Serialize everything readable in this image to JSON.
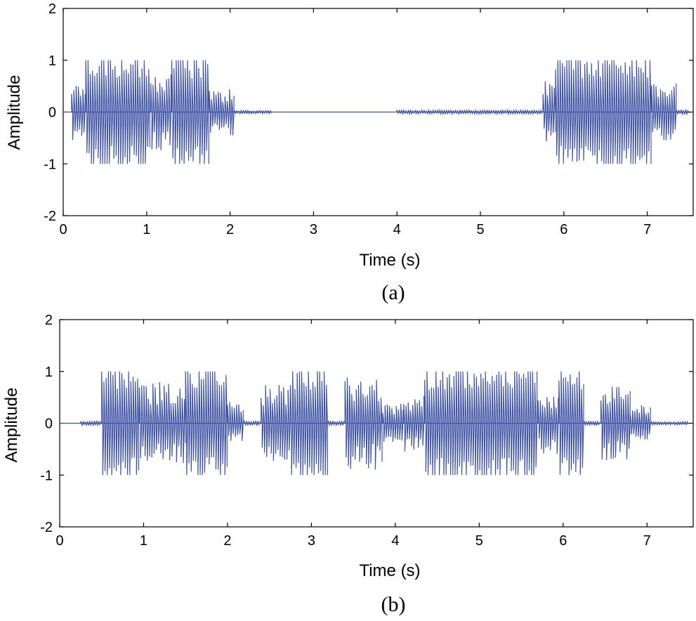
{
  "chart_data": [
    {
      "type": "line",
      "caption": "(a)",
      "xlabel": "Time (s)",
      "ylabel": "Amplitude",
      "xlim": [
        0,
        7.55
      ],
      "ylim": [
        -2,
        2
      ],
      "xticks": [
        0,
        1,
        2,
        3,
        4,
        5,
        6,
        7
      ],
      "yticks": [
        -2,
        -1,
        0,
        1,
        2
      ],
      "grid": false,
      "color": "#3f53a5",
      "segments": [
        {
          "start": 0.1,
          "end": 0.27,
          "amp": 0.6
        },
        {
          "start": 0.27,
          "end": 1.05,
          "amp": 1.0
        },
        {
          "start": 1.05,
          "end": 1.3,
          "amp": 0.75
        },
        {
          "start": 1.3,
          "end": 1.75,
          "amp": 1.0
        },
        {
          "start": 1.75,
          "end": 2.05,
          "amp": 0.45
        },
        {
          "start": 2.05,
          "end": 2.5,
          "amp": 0.03
        },
        {
          "start": 4.0,
          "end": 5.75,
          "amp": 0.04
        },
        {
          "start": 5.75,
          "end": 5.9,
          "amp": 0.6
        },
        {
          "start": 5.9,
          "end": 7.05,
          "amp": 1.0
        },
        {
          "start": 7.05,
          "end": 7.35,
          "amp": 0.6
        },
        {
          "start": 7.35,
          "end": 7.5,
          "amp": 0.05
        }
      ]
    },
    {
      "type": "line",
      "caption": "(b)",
      "xlabel": "Time (s)",
      "ylabel": "Amplitude",
      "xlim": [
        0,
        7.55
      ],
      "ylim": [
        -2,
        2
      ],
      "xticks": [
        0,
        1,
        2,
        3,
        4,
        5,
        6,
        7
      ],
      "yticks": [
        -2,
        -1,
        0,
        1,
        2
      ],
      "grid": false,
      "color": "#3f53a5",
      "segments": [
        {
          "start": 0.25,
          "end": 0.5,
          "amp": 0.05
        },
        {
          "start": 0.5,
          "end": 0.95,
          "amp": 1.0
        },
        {
          "start": 0.95,
          "end": 1.5,
          "amp": 0.8
        },
        {
          "start": 1.5,
          "end": 2.0,
          "amp": 1.0
        },
        {
          "start": 2.0,
          "end": 2.2,
          "amp": 0.45
        },
        {
          "start": 2.2,
          "end": 2.4,
          "amp": 0.05
        },
        {
          "start": 2.4,
          "end": 2.75,
          "amp": 0.75
        },
        {
          "start": 2.75,
          "end": 3.2,
          "amp": 1.0
        },
        {
          "start": 3.2,
          "end": 3.4,
          "amp": 0.05
        },
        {
          "start": 3.4,
          "end": 3.85,
          "amp": 0.9
        },
        {
          "start": 3.85,
          "end": 4.1,
          "amp": 0.4
        },
        {
          "start": 4.1,
          "end": 4.35,
          "amp": 0.55
        },
        {
          "start": 4.35,
          "end": 5.7,
          "amp": 1.0
        },
        {
          "start": 5.7,
          "end": 5.95,
          "amp": 0.6
        },
        {
          "start": 5.95,
          "end": 6.25,
          "amp": 1.0
        },
        {
          "start": 6.25,
          "end": 6.45,
          "amp": 0.05
        },
        {
          "start": 6.45,
          "end": 6.8,
          "amp": 0.75
        },
        {
          "start": 6.8,
          "end": 7.05,
          "amp": 0.35
        },
        {
          "start": 7.05,
          "end": 7.5,
          "amp": 0.03
        }
      ]
    }
  ]
}
